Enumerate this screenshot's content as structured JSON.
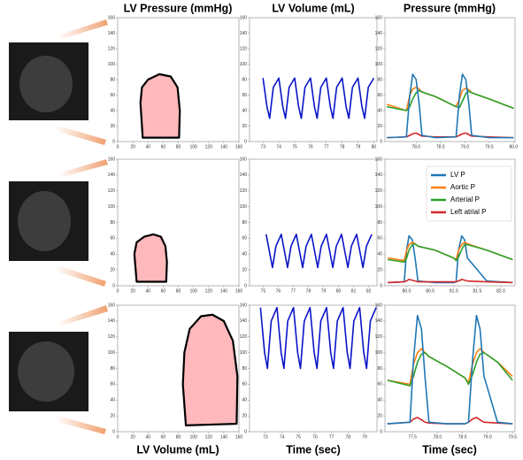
{
  "column_titles": [
    "LV Pressure (mmHg)",
    "LV Volume (mL)",
    "Pressure (mmHg)"
  ],
  "x_labels": [
    "LV Volume (mL)",
    "Time (sec)",
    "Time (sec)"
  ],
  "chart_data": [
    {
      "type": "loop",
      "color": "#ffb8bb",
      "line_color": "#000000",
      "x": [
        33,
        30,
        32,
        40,
        55,
        70,
        79,
        82,
        81
      ],
      "values": [
        5,
        50,
        70,
        80,
        87,
        84,
        70,
        40,
        5
      ],
      "xlim": [
        0,
        160
      ],
      "xticks": [
        0,
        20,
        40,
        60,
        80,
        100,
        120,
        140,
        160
      ],
      "ylim": [
        0,
        160
      ],
      "yticks": [
        0,
        20,
        40,
        60,
        80,
        100,
        120,
        140,
        160
      ]
    },
    {
      "type": "line",
      "color": "#0a14c8",
      "x": [
        73,
        73.25,
        73.42,
        73.65,
        74,
        74.25,
        74.42,
        74.65,
        75,
        75.25,
        75.42,
        75.65,
        76,
        76.25,
        76.42,
        76.65,
        77,
        77.25,
        77.42,
        77.65,
        78,
        78.25,
        78.42,
        78.65,
        79,
        79.25,
        79.42,
        79.65,
        80
      ],
      "values": [
        82,
        45,
        30,
        70,
        82,
        45,
        30,
        70,
        82,
        45,
        30,
        70,
        82,
        45,
        30,
        70,
        82,
        45,
        30,
        70,
        82,
        45,
        30,
        70,
        82,
        45,
        30,
        70,
        82
      ],
      "xlim": [
        72.15,
        80.2
      ],
      "xticks": [
        73,
        74,
        75,
        76,
        77,
        78,
        79,
        80
      ],
      "ylim": [
        0,
        160
      ],
      "yticks": [
        0,
        20,
        40,
        60,
        80,
        100,
        120,
        140,
        160
      ]
    },
    {
      "type": "line",
      "x": [
        77.4,
        77.8,
        77.87,
        77.93,
        78.0,
        78.06,
        78.12,
        78.4,
        78.82,
        78.89,
        78.95,
        79.02,
        79.08,
        79.14,
        79.5,
        80.0
      ],
      "series": [
        {
          "color": "#ff7f0e",
          "values": [
            48,
            40,
            60,
            68,
            70,
            68,
            64,
            58,
            45,
            55,
            66,
            69,
            67,
            63,
            55,
            43
          ]
        },
        {
          "color": "#2ca02c",
          "values": [
            45,
            40,
            45,
            55,
            63,
            66,
            64,
            58,
            45,
            44,
            52,
            62,
            65,
            63,
            55,
            43
          ]
        },
        {
          "color": "#d62728",
          "values": [
            5,
            6,
            8,
            10,
            11,
            9,
            7,
            6,
            6,
            8,
            10,
            11,
            9,
            7,
            6,
            5
          ]
        },
        {
          "color": "#1f77b4",
          "values": [
            5,
            6,
            60,
            87,
            80,
            50,
            8,
            5,
            6,
            60,
            87,
            80,
            50,
            8,
            5,
            5
          ]
        }
      ],
      "xlim": [
        77.36,
        80.03
      ],
      "xticks": [
        {
          "value": 78,
          "label": "78.0"
        },
        78.5,
        {
          "value": 79,
          "label": "79.0"
        },
        79.5,
        {
          "value": 80,
          "label": "80.0"
        }
      ],
      "ylim": [
        0,
        160
      ],
      "yticks": [
        0,
        20,
        40,
        60,
        80,
        100,
        120,
        140,
        160
      ]
    },
    {
      "type": "loop",
      "color": "#ffb8bb",
      "line_color": "#000000",
      "x": [
        25,
        22,
        25,
        35,
        47,
        57,
        63,
        65,
        64
      ],
      "values": [
        5,
        40,
        55,
        62,
        65,
        62,
        50,
        30,
        5
      ],
      "xlim": [
        0,
        160
      ],
      "xticks": [
        0,
        20,
        40,
        60,
        80,
        100,
        120,
        140,
        160
      ],
      "ylim": [
        0,
        160
      ],
      "yticks": [
        0,
        20,
        40,
        60,
        80,
        100,
        120,
        140,
        160
      ]
    },
    {
      "type": "line",
      "color": "#0a14c8",
      "x": [
        75.2,
        75.45,
        75.62,
        75.85,
        76.2,
        76.45,
        76.62,
        76.85,
        77.2,
        77.45,
        77.62,
        77.85,
        78.2,
        78.45,
        78.62,
        78.85,
        79.2,
        79.45,
        79.62,
        79.85,
        80.2,
        80.45,
        80.62,
        80.85,
        81.2,
        81.45,
        81.62,
        81.85,
        82.2
      ],
      "values": [
        65,
        40,
        23,
        50,
        65,
        40,
        23,
        50,
        65,
        40,
        23,
        50,
        65,
        40,
        23,
        50,
        65,
        40,
        23,
        50,
        65,
        40,
        23,
        50,
        65,
        40,
        23,
        50,
        65
      ],
      "xlim": [
        74.1,
        82.55
      ],
      "xticks": [
        75,
        76,
        77,
        78,
        79,
        80,
        81,
        82
      ],
      "ylim": [
        0,
        160
      ],
      "yticks": [
        0,
        20,
        40,
        60,
        80,
        100,
        120,
        140,
        160
      ]
    },
    {
      "type": "line",
      "legend": "upper right",
      "x": [
        79.6,
        79.95,
        80.0,
        80.05,
        80.12,
        80.18,
        80.24,
        80.6,
        81.0,
        81.05,
        81.1,
        81.17,
        81.23,
        81.29,
        81.7,
        82.25
      ],
      "series": [
        {
          "name": "LV P",
          "color": "#1f77b4",
          "values": [
            4,
            5,
            45,
            63,
            58,
            35,
            6,
            4,
            4,
            5,
            45,
            63,
            58,
            35,
            6,
            4
          ]
        },
        {
          "name": "Aortic P",
          "color": "#ff7f0e",
          "values": [
            35,
            32,
            45,
            52,
            55,
            53,
            50,
            45,
            35,
            33,
            45,
            52,
            55,
            53,
            45,
            33
          ]
        },
        {
          "name": "Arterial P",
          "color": "#2ca02c",
          "values": [
            33,
            30,
            35,
            45,
            52,
            53,
            50,
            45,
            35,
            32,
            36,
            46,
            52,
            52,
            45,
            33
          ]
        },
        {
          "name": "Left atrial P",
          "color": "#d62728",
          "values": [
            4,
            5,
            6,
            8,
            7,
            6,
            5,
            5,
            5,
            5,
            6,
            8,
            7,
            6,
            5,
            4
          ]
        }
      ],
      "xlim": [
        79.54,
        82.3
      ],
      "xticks": [
        {
          "value": 80,
          "label": "80.0"
        },
        80.5,
        {
          "value": 81,
          "label": "81.0"
        },
        81.5,
        {
          "value": 82,
          "label": "82.0"
        }
      ],
      "ylim": [
        0,
        160
      ],
      "yticks": [
        0,
        20,
        40,
        60,
        80,
        100,
        120,
        140,
        160
      ]
    },
    {
      "type": "loop",
      "color": "#ffb8bb",
      "line_color": "#000000",
      "x": [
        90,
        86,
        88,
        95,
        110,
        125,
        140,
        152,
        158,
        157
      ],
      "values": [
        8,
        60,
        100,
        130,
        146,
        148,
        140,
        115,
        70,
        10
      ],
      "xlim": [
        0,
        160
      ],
      "xticks": [
        0,
        20,
        40,
        60,
        80,
        100,
        120,
        140,
        160
      ],
      "ylim": [
        0,
        160
      ],
      "yticks": [
        0,
        20,
        40,
        60,
        80,
        100,
        120,
        140,
        160
      ]
    },
    {
      "type": "line",
      "color": "#0a14c8",
      "x": [
        72.7,
        72.95,
        73.12,
        73.35,
        73.7,
        73.95,
        74.12,
        74.35,
        74.7,
        74.95,
        75.12,
        75.35,
        75.7,
        75.95,
        76.12,
        76.35,
        76.7,
        76.95,
        77.12,
        77.35,
        77.7,
        77.95,
        78.12,
        78.35,
        78.7,
        78.95,
        79.12,
        79.35,
        79.7
      ],
      "values": [
        157,
        100,
        80,
        140,
        157,
        100,
        80,
        140,
        157,
        100,
        80,
        140,
        157,
        100,
        80,
        140,
        157,
        100,
        80,
        140,
        157,
        100,
        80,
        140,
        157,
        100,
        80,
        140,
        157
      ],
      "xlim": [
        72.04,
        79.75
      ],
      "xticks": [
        73,
        74,
        75,
        76,
        77,
        78,
        79
      ],
      "ylim": [
        0,
        160
      ],
      "yticks": [
        0,
        20,
        40,
        60,
        80,
        100,
        120,
        140,
        160
      ]
    },
    {
      "type": "line",
      "x": [
        77.0,
        77.45,
        77.52,
        77.6,
        77.68,
        77.75,
        77.83,
        78.2,
        78.55,
        78.62,
        78.7,
        78.78,
        78.85,
        78.93,
        79.2,
        79.5
      ],
      "series": [
        {
          "color": "#ff7f0e",
          "values": [
            65,
            60,
            85,
            100,
            105,
            100,
            95,
            82,
            68,
            62,
            85,
            100,
            105,
            100,
            88,
            70
          ]
        },
        {
          "color": "#2ca02c",
          "values": [
            65,
            58,
            70,
            88,
            98,
            100,
            95,
            82,
            68,
            60,
            72,
            88,
            98,
            100,
            88,
            65
          ]
        },
        {
          "color": "#d62728",
          "values": [
            10,
            12,
            16,
            18,
            15,
            12,
            11,
            10,
            10,
            12,
            16,
            18,
            15,
            12,
            11,
            10
          ]
        },
        {
          "color": "#1f77b4",
          "values": [
            10,
            12,
            90,
            147,
            130,
            70,
            12,
            10,
            10,
            12,
            90,
            147,
            130,
            70,
            12,
            10
          ]
        }
      ],
      "xlim": [
        76.95,
        79.55
      ],
      "xticks": [
        77.5,
        {
          "value": 78,
          "label": "78.0"
        },
        78.5,
        {
          "value": 79,
          "label": "79.0"
        },
        79.5
      ],
      "ylim": [
        0,
        160
      ],
      "yticks": [
        0,
        20,
        40,
        60,
        80,
        100,
        120,
        140,
        160
      ]
    }
  ]
}
